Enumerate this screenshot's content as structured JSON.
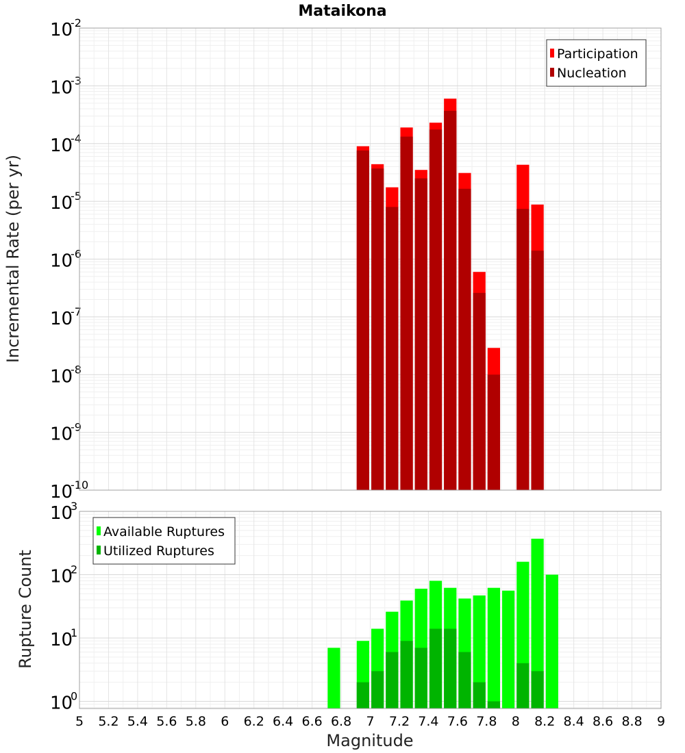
{
  "chart_data": [
    {
      "type": "bar",
      "title": "Mataikona",
      "xlabel": "Magnitude",
      "ylabel": "Incremental Rate (per yr)",
      "yscale": "log",
      "ylim": [
        1e-10,
        0.01
      ],
      "xlim": [
        5,
        9
      ],
      "bar_width": 0.1,
      "legend": {
        "placement": "top-right"
      },
      "grid": true,
      "series": [
        {
          "name": "Participation",
          "color": "#ff0000",
          "points": [
            {
              "x": 6.95,
              "y": 9e-05
            },
            {
              "x": 7.05,
              "y": 4.4e-05
            },
            {
              "x": 7.15,
              "y": 1.75e-05
            },
            {
              "x": 7.25,
              "y": 0.00019
            },
            {
              "x": 7.35,
              "y": 3.5e-05
            },
            {
              "x": 7.45,
              "y": 0.00023
            },
            {
              "x": 7.55,
              "y": 0.0006
            },
            {
              "x": 7.65,
              "y": 3.1e-05
            },
            {
              "x": 7.75,
              "y": 6e-07
            },
            {
              "x": 7.85,
              "y": 2.9e-08
            },
            {
              "x": 8.05,
              "y": 4.3e-05
            },
            {
              "x": 8.15,
              "y": 8.8e-06
            }
          ]
        },
        {
          "name": "Nucleation",
          "color": "#b00000",
          "points": [
            {
              "x": 6.95,
              "y": 7.6e-05
            },
            {
              "x": 7.05,
              "y": 3.7e-05
            },
            {
              "x": 7.15,
              "y": 8e-06
            },
            {
              "x": 7.25,
              "y": 0.000132
            },
            {
              "x": 7.35,
              "y": 2.5e-05
            },
            {
              "x": 7.45,
              "y": 0.000175
            },
            {
              "x": 7.55,
              "y": 0.00037
            },
            {
              "x": 7.65,
              "y": 1.65e-05
            },
            {
              "x": 7.75,
              "y": 2.6e-07
            },
            {
              "x": 7.85,
              "y": 1e-08
            },
            {
              "x": 8.05,
              "y": 7.4e-06
            },
            {
              "x": 8.15,
              "y": 1.4e-06
            }
          ]
        }
      ],
      "y_ticks": [
        {
          "base": "10",
          "exp": "-10",
          "value": 1e-10
        },
        {
          "base": "10",
          "exp": "-9",
          "value": 1e-09
        },
        {
          "base": "10",
          "exp": "-8",
          "value": 1e-08
        },
        {
          "base": "10",
          "exp": "-7",
          "value": 1e-07
        },
        {
          "base": "10",
          "exp": "-6",
          "value": 1e-06
        },
        {
          "base": "10",
          "exp": "-5",
          "value": 1e-05
        },
        {
          "base": "10",
          "exp": "-4",
          "value": 0.0001
        },
        {
          "base": "10",
          "exp": "-3",
          "value": 0.001
        },
        {
          "base": "10",
          "exp": "-2",
          "value": 0.01
        }
      ]
    },
    {
      "type": "bar",
      "xlabel": "Magnitude",
      "ylabel": "Rupture Count",
      "yscale": "log",
      "ylim": [
        0.77,
        1000
      ],
      "xlim": [
        5,
        9
      ],
      "bar_width": 0.1,
      "legend": {
        "placement": "top-left"
      },
      "grid": true,
      "series": [
        {
          "name": "Available Ruptures",
          "color": "#00ff00",
          "points": [
            {
              "x": 6.75,
              "y": 7
            },
            {
              "x": 6.95,
              "y": 9
            },
            {
              "x": 7.05,
              "y": 14
            },
            {
              "x": 7.15,
              "y": 26
            },
            {
              "x": 7.25,
              "y": 39
            },
            {
              "x": 7.35,
              "y": 60
            },
            {
              "x": 7.45,
              "y": 80
            },
            {
              "x": 7.55,
              "y": 62
            },
            {
              "x": 7.65,
              "y": 42
            },
            {
              "x": 7.75,
              "y": 47
            },
            {
              "x": 7.85,
              "y": 62
            },
            {
              "x": 7.95,
              "y": 56
            },
            {
              "x": 8.05,
              "y": 160
            },
            {
              "x": 8.15,
              "y": 370
            },
            {
              "x": 8.25,
              "y": 100
            }
          ]
        },
        {
          "name": "Utilized Ruptures",
          "color": "#00b400",
          "points": [
            {
              "x": 6.95,
              "y": 2
            },
            {
              "x": 7.05,
              "y": 3
            },
            {
              "x": 7.15,
              "y": 6
            },
            {
              "x": 7.25,
              "y": 9
            },
            {
              "x": 7.35,
              "y": 7
            },
            {
              "x": 7.45,
              "y": 14
            },
            {
              "x": 7.55,
              "y": 14
            },
            {
              "x": 7.65,
              "y": 6
            },
            {
              "x": 7.75,
              "y": 2
            },
            {
              "x": 7.85,
              "y": 1
            },
            {
              "x": 8.05,
              "y": 4
            },
            {
              "x": 8.15,
              "y": 3
            }
          ]
        }
      ],
      "y_ticks": [
        {
          "base": "10",
          "exp": "0",
          "value": 1
        },
        {
          "base": "10",
          "exp": "1",
          "value": 10
        },
        {
          "base": "10",
          "exp": "2",
          "value": 100
        },
        {
          "base": "10",
          "exp": "3",
          "value": 1000
        }
      ]
    }
  ],
  "x_ticks": [
    "5",
    "5.2",
    "5.4",
    "5.6",
    "5.8",
    "6",
    "6.2",
    "6.4",
    "6.6",
    "6.8",
    "7",
    "7.2",
    "7.4",
    "7.6",
    "7.8",
    "8",
    "8.2",
    "8.4",
    "8.6",
    "8.8",
    "9"
  ]
}
